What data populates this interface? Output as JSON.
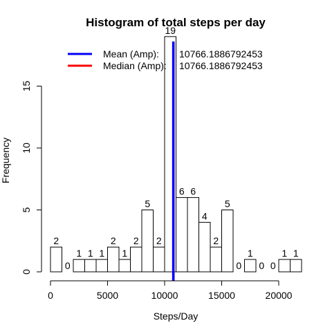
{
  "chart_data": {
    "type": "bar",
    "title": "Histogram of total steps per day",
    "xlabel": "Steps/Day",
    "ylabel": "Frequency",
    "bin_width": 1000,
    "bins": [
      {
        "start": 0,
        "end": 1000,
        "count": 2
      },
      {
        "start": 1000,
        "end": 2000,
        "count": 0
      },
      {
        "start": 2000,
        "end": 3000,
        "count": 1
      },
      {
        "start": 3000,
        "end": 4000,
        "count": 1
      },
      {
        "start": 4000,
        "end": 5000,
        "count": 1
      },
      {
        "start": 5000,
        "end": 6000,
        "count": 2
      },
      {
        "start": 6000,
        "end": 7000,
        "count": 1
      },
      {
        "start": 7000,
        "end": 8000,
        "count": 2
      },
      {
        "start": 8000,
        "end": 9000,
        "count": 5
      },
      {
        "start": 9000,
        "end": 10000,
        "count": 2
      },
      {
        "start": 10000,
        "end": 11000,
        "count": 19
      },
      {
        "start": 11000,
        "end": 12000,
        "count": 6
      },
      {
        "start": 12000,
        "end": 13000,
        "count": 6
      },
      {
        "start": 13000,
        "end": 14000,
        "count": 4
      },
      {
        "start": 14000,
        "end": 15000,
        "count": 2
      },
      {
        "start": 15000,
        "end": 16000,
        "count": 5
      },
      {
        "start": 16000,
        "end": 17000,
        "count": 0
      },
      {
        "start": 17000,
        "end": 18000,
        "count": 1
      },
      {
        "start": 18000,
        "end": 19000,
        "count": 0
      },
      {
        "start": 19000,
        "end": 20000,
        "count": 0
      },
      {
        "start": 20000,
        "end": 21000,
        "count": 1
      },
      {
        "start": 21000,
        "end": 22000,
        "count": 1
      }
    ],
    "xticks": [
      0,
      5000,
      10000,
      15000,
      20000
    ],
    "yticks": [
      0,
      5,
      10,
      15
    ],
    "xlim": [
      0,
      22000
    ],
    "ylim": [
      0,
      19
    ],
    "grid": false,
    "legend_position": "top",
    "reference_lines": [
      {
        "label": "Mean   (Amp):",
        "value": 10766.1886792453,
        "value_text": "10766.1886792453",
        "color": "#0000ff"
      },
      {
        "label": "Median (Amp):",
        "value": 10766.1886792453,
        "value_text": "10766.1886792453",
        "color": "#ff0000"
      }
    ]
  }
}
